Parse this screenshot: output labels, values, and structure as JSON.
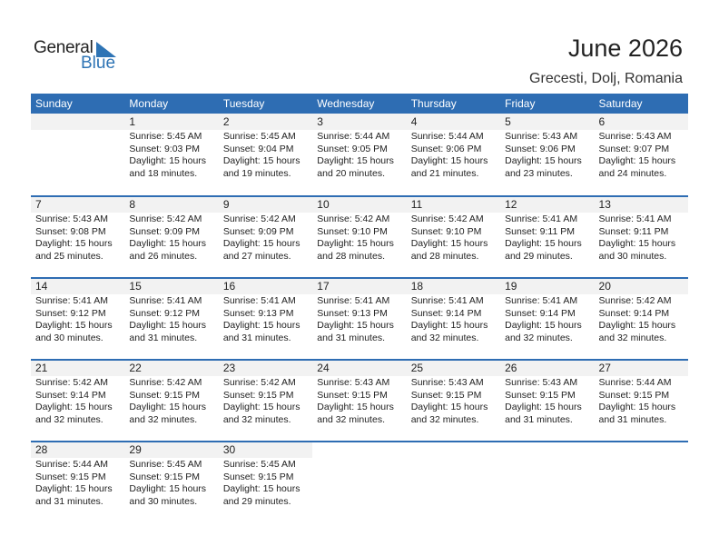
{
  "logo": {
    "general": "General",
    "blue": "Blue"
  },
  "title": "June 2026",
  "location": "Grecesti, Dolj, Romania",
  "colors": {
    "header": "#2e6db3",
    "logo_blue": "#2e74b5",
    "day_band": "#f2f2f2"
  },
  "weekdays": [
    "Sunday",
    "Monday",
    "Tuesday",
    "Wednesday",
    "Thursday",
    "Friday",
    "Saturday"
  ],
  "weeks": [
    [
      null,
      {
        "day": "1",
        "sunrise": "Sunrise: 5:45 AM",
        "sunset": "Sunset: 9:03 PM",
        "daylight1": "Daylight: 15 hours",
        "daylight2": "and 18 minutes."
      },
      {
        "day": "2",
        "sunrise": "Sunrise: 5:45 AM",
        "sunset": "Sunset: 9:04 PM",
        "daylight1": "Daylight: 15 hours",
        "daylight2": "and 19 minutes."
      },
      {
        "day": "3",
        "sunrise": "Sunrise: 5:44 AM",
        "sunset": "Sunset: 9:05 PM",
        "daylight1": "Daylight: 15 hours",
        "daylight2": "and 20 minutes."
      },
      {
        "day": "4",
        "sunrise": "Sunrise: 5:44 AM",
        "sunset": "Sunset: 9:06 PM",
        "daylight1": "Daylight: 15 hours",
        "daylight2": "and 21 minutes."
      },
      {
        "day": "5",
        "sunrise": "Sunrise: 5:43 AM",
        "sunset": "Sunset: 9:06 PM",
        "daylight1": "Daylight: 15 hours",
        "daylight2": "and 23 minutes."
      },
      {
        "day": "6",
        "sunrise": "Sunrise: 5:43 AM",
        "sunset": "Sunset: 9:07 PM",
        "daylight1": "Daylight: 15 hours",
        "daylight2": "and 24 minutes."
      }
    ],
    [
      {
        "day": "7",
        "sunrise": "Sunrise: 5:43 AM",
        "sunset": "Sunset: 9:08 PM",
        "daylight1": "Daylight: 15 hours",
        "daylight2": "and 25 minutes."
      },
      {
        "day": "8",
        "sunrise": "Sunrise: 5:42 AM",
        "sunset": "Sunset: 9:09 PM",
        "daylight1": "Daylight: 15 hours",
        "daylight2": "and 26 minutes."
      },
      {
        "day": "9",
        "sunrise": "Sunrise: 5:42 AM",
        "sunset": "Sunset: 9:09 PM",
        "daylight1": "Daylight: 15 hours",
        "daylight2": "and 27 minutes."
      },
      {
        "day": "10",
        "sunrise": "Sunrise: 5:42 AM",
        "sunset": "Sunset: 9:10 PM",
        "daylight1": "Daylight: 15 hours",
        "daylight2": "and 28 minutes."
      },
      {
        "day": "11",
        "sunrise": "Sunrise: 5:42 AM",
        "sunset": "Sunset: 9:10 PM",
        "daylight1": "Daylight: 15 hours",
        "daylight2": "and 28 minutes."
      },
      {
        "day": "12",
        "sunrise": "Sunrise: 5:41 AM",
        "sunset": "Sunset: 9:11 PM",
        "daylight1": "Daylight: 15 hours",
        "daylight2": "and 29 minutes."
      },
      {
        "day": "13",
        "sunrise": "Sunrise: 5:41 AM",
        "sunset": "Sunset: 9:11 PM",
        "daylight1": "Daylight: 15 hours",
        "daylight2": "and 30 minutes."
      }
    ],
    [
      {
        "day": "14",
        "sunrise": "Sunrise: 5:41 AM",
        "sunset": "Sunset: 9:12 PM",
        "daylight1": "Daylight: 15 hours",
        "daylight2": "and 30 minutes."
      },
      {
        "day": "15",
        "sunrise": "Sunrise: 5:41 AM",
        "sunset": "Sunset: 9:12 PM",
        "daylight1": "Daylight: 15 hours",
        "daylight2": "and 31 minutes."
      },
      {
        "day": "16",
        "sunrise": "Sunrise: 5:41 AM",
        "sunset": "Sunset: 9:13 PM",
        "daylight1": "Daylight: 15 hours",
        "daylight2": "and 31 minutes."
      },
      {
        "day": "17",
        "sunrise": "Sunrise: 5:41 AM",
        "sunset": "Sunset: 9:13 PM",
        "daylight1": "Daylight: 15 hours",
        "daylight2": "and 31 minutes."
      },
      {
        "day": "18",
        "sunrise": "Sunrise: 5:41 AM",
        "sunset": "Sunset: 9:14 PM",
        "daylight1": "Daylight: 15 hours",
        "daylight2": "and 32 minutes."
      },
      {
        "day": "19",
        "sunrise": "Sunrise: 5:41 AM",
        "sunset": "Sunset: 9:14 PM",
        "daylight1": "Daylight: 15 hours",
        "daylight2": "and 32 minutes."
      },
      {
        "day": "20",
        "sunrise": "Sunrise: 5:42 AM",
        "sunset": "Sunset: 9:14 PM",
        "daylight1": "Daylight: 15 hours",
        "daylight2": "and 32 minutes."
      }
    ],
    [
      {
        "day": "21",
        "sunrise": "Sunrise: 5:42 AM",
        "sunset": "Sunset: 9:14 PM",
        "daylight1": "Daylight: 15 hours",
        "daylight2": "and 32 minutes."
      },
      {
        "day": "22",
        "sunrise": "Sunrise: 5:42 AM",
        "sunset": "Sunset: 9:15 PM",
        "daylight1": "Daylight: 15 hours",
        "daylight2": "and 32 minutes."
      },
      {
        "day": "23",
        "sunrise": "Sunrise: 5:42 AM",
        "sunset": "Sunset: 9:15 PM",
        "daylight1": "Daylight: 15 hours",
        "daylight2": "and 32 minutes."
      },
      {
        "day": "24",
        "sunrise": "Sunrise: 5:43 AM",
        "sunset": "Sunset: 9:15 PM",
        "daylight1": "Daylight: 15 hours",
        "daylight2": "and 32 minutes."
      },
      {
        "day": "25",
        "sunrise": "Sunrise: 5:43 AM",
        "sunset": "Sunset: 9:15 PM",
        "daylight1": "Daylight: 15 hours",
        "daylight2": "and 32 minutes."
      },
      {
        "day": "26",
        "sunrise": "Sunrise: 5:43 AM",
        "sunset": "Sunset: 9:15 PM",
        "daylight1": "Daylight: 15 hours",
        "daylight2": "and 31 minutes."
      },
      {
        "day": "27",
        "sunrise": "Sunrise: 5:44 AM",
        "sunset": "Sunset: 9:15 PM",
        "daylight1": "Daylight: 15 hours",
        "daylight2": "and 31 minutes."
      }
    ],
    [
      {
        "day": "28",
        "sunrise": "Sunrise: 5:44 AM",
        "sunset": "Sunset: 9:15 PM",
        "daylight1": "Daylight: 15 hours",
        "daylight2": "and 31 minutes."
      },
      {
        "day": "29",
        "sunrise": "Sunrise: 5:45 AM",
        "sunset": "Sunset: 9:15 PM",
        "daylight1": "Daylight: 15 hours",
        "daylight2": "and 30 minutes."
      },
      {
        "day": "30",
        "sunrise": "Sunrise: 5:45 AM",
        "sunset": "Sunset: 9:15 PM",
        "daylight1": "Daylight: 15 hours",
        "daylight2": "and 29 minutes."
      },
      null,
      null,
      null,
      null
    ]
  ]
}
